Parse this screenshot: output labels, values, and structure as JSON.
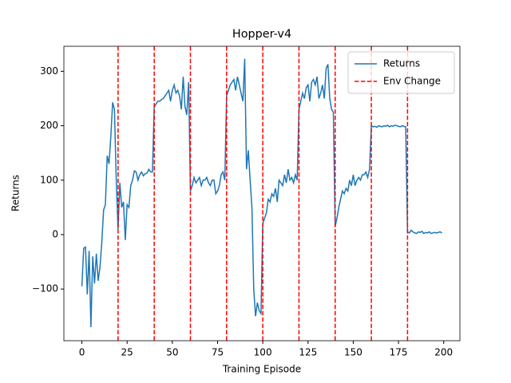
{
  "chart_data": {
    "type": "line",
    "title": "Hopper-v4",
    "xlabel": "Training Episode",
    "ylabel": "Returns",
    "x": [
      0,
      1,
      2,
      3,
      4,
      5,
      6,
      7,
      8,
      9,
      10,
      11,
      12,
      13,
      14,
      15,
      16,
      17,
      18,
      19,
      20,
      21,
      22,
      23,
      24,
      25,
      26,
      27,
      28,
      29,
      30,
      31,
      32,
      33,
      34,
      35,
      36,
      37,
      38,
      39,
      40,
      41,
      42,
      43,
      44,
      45,
      46,
      47,
      48,
      49,
      50,
      51,
      52,
      53,
      54,
      55,
      56,
      57,
      58,
      59,
      60,
      61,
      62,
      63,
      64,
      65,
      66,
      67,
      68,
      69,
      70,
      71,
      72,
      73,
      74,
      75,
      76,
      77,
      78,
      79,
      80,
      81,
      82,
      83,
      84,
      85,
      86,
      87,
      88,
      89,
      90,
      91,
      92,
      93,
      94,
      95,
      96,
      97,
      98,
      99,
      100,
      101,
      102,
      103,
      104,
      105,
      106,
      107,
      108,
      109,
      110,
      111,
      112,
      113,
      114,
      115,
      116,
      117,
      118,
      119,
      120,
      121,
      122,
      123,
      124,
      125,
      126,
      127,
      128,
      129,
      130,
      131,
      132,
      133,
      134,
      135,
      136,
      137,
      138,
      139,
      140,
      141,
      142,
      143,
      144,
      145,
      146,
      147,
      148,
      149,
      150,
      151,
      152,
      153,
      154,
      155,
      156,
      157,
      158,
      159,
      160,
      161,
      162,
      163,
      164,
      165,
      166,
      167,
      168,
      169,
      170,
      171,
      172,
      173,
      174,
      175,
      176,
      177,
      178,
      179,
      180,
      181,
      182,
      183,
      184,
      185,
      186,
      187,
      188,
      189,
      190,
      191,
      192,
      193,
      194,
      195,
      196,
      197,
      198,
      199
    ],
    "series": [
      {
        "name": "Returns",
        "color": "#1f77b4",
        "values": [
          -95,
          -25,
          -23,
          -110,
          -30,
          -170,
          -40,
          -90,
          -35,
          -85,
          -60,
          -15,
          45,
          55,
          145,
          130,
          180,
          243,
          230,
          100,
          10,
          95,
          50,
          60,
          -10,
          55,
          50,
          90,
          100,
          117,
          115,
          100,
          110,
          115,
          108,
          112,
          113,
          120,
          115,
          115,
          235,
          240,
          245,
          245,
          248,
          250,
          255,
          260,
          265,
          245,
          265,
          275,
          260,
          265,
          255,
          230,
          290,
          235,
          220,
          280,
          80,
          90,
          105,
          95,
          100,
          105,
          90,
          100,
          100,
          105,
          95,
          90,
          100,
          100,
          75,
          80,
          90,
          110,
          115,
          100,
          255,
          265,
          275,
          280,
          285,
          265,
          290,
          275,
          260,
          245,
          323,
          120,
          155,
          100,
          50,
          -100,
          -150,
          -125,
          -140,
          -145,
          20,
          30,
          40,
          65,
          60,
          75,
          70,
          85,
          60,
          100,
          95,
          90,
          110,
          95,
          120,
          100,
          105,
          95,
          110,
          100,
          230,
          245,
          260,
          250,
          270,
          275,
          245,
          280,
          285,
          275,
          290,
          250,
          260,
          275,
          250,
          305,
          313,
          250,
          230,
          225,
          15,
          30,
          50,
          65,
          80,
          75,
          85,
          80,
          100,
          90,
          110,
          90,
          100,
          105,
          100,
          110,
          110,
          115,
          105,
          120,
          200,
          198,
          199,
          197,
          200,
          199,
          198,
          200,
          199,
          201,
          198,
          200,
          199,
          201,
          200,
          199,
          198,
          200,
          199,
          198,
          5,
          3,
          8,
          5,
          3,
          2,
          5,
          4,
          6,
          2,
          4,
          3,
          5,
          2,
          3,
          4,
          3,
          4,
          5,
          3
        ]
      }
    ],
    "vlines": {
      "name": "Env Change",
      "color": "#ff0000",
      "x": [
        20,
        40,
        60,
        80,
        100,
        120,
        140,
        160,
        180
      ]
    },
    "xlim": [
      -9.95,
      208.95
    ],
    "ylim": [
      -195,
      346
    ],
    "xticks": [
      0,
      25,
      50,
      75,
      100,
      125,
      150,
      175,
      200
    ],
    "yticks": [
      {
        "value": -100,
        "label": "−100"
      },
      0,
      100,
      200,
      300
    ],
    "legend": "upper right"
  }
}
